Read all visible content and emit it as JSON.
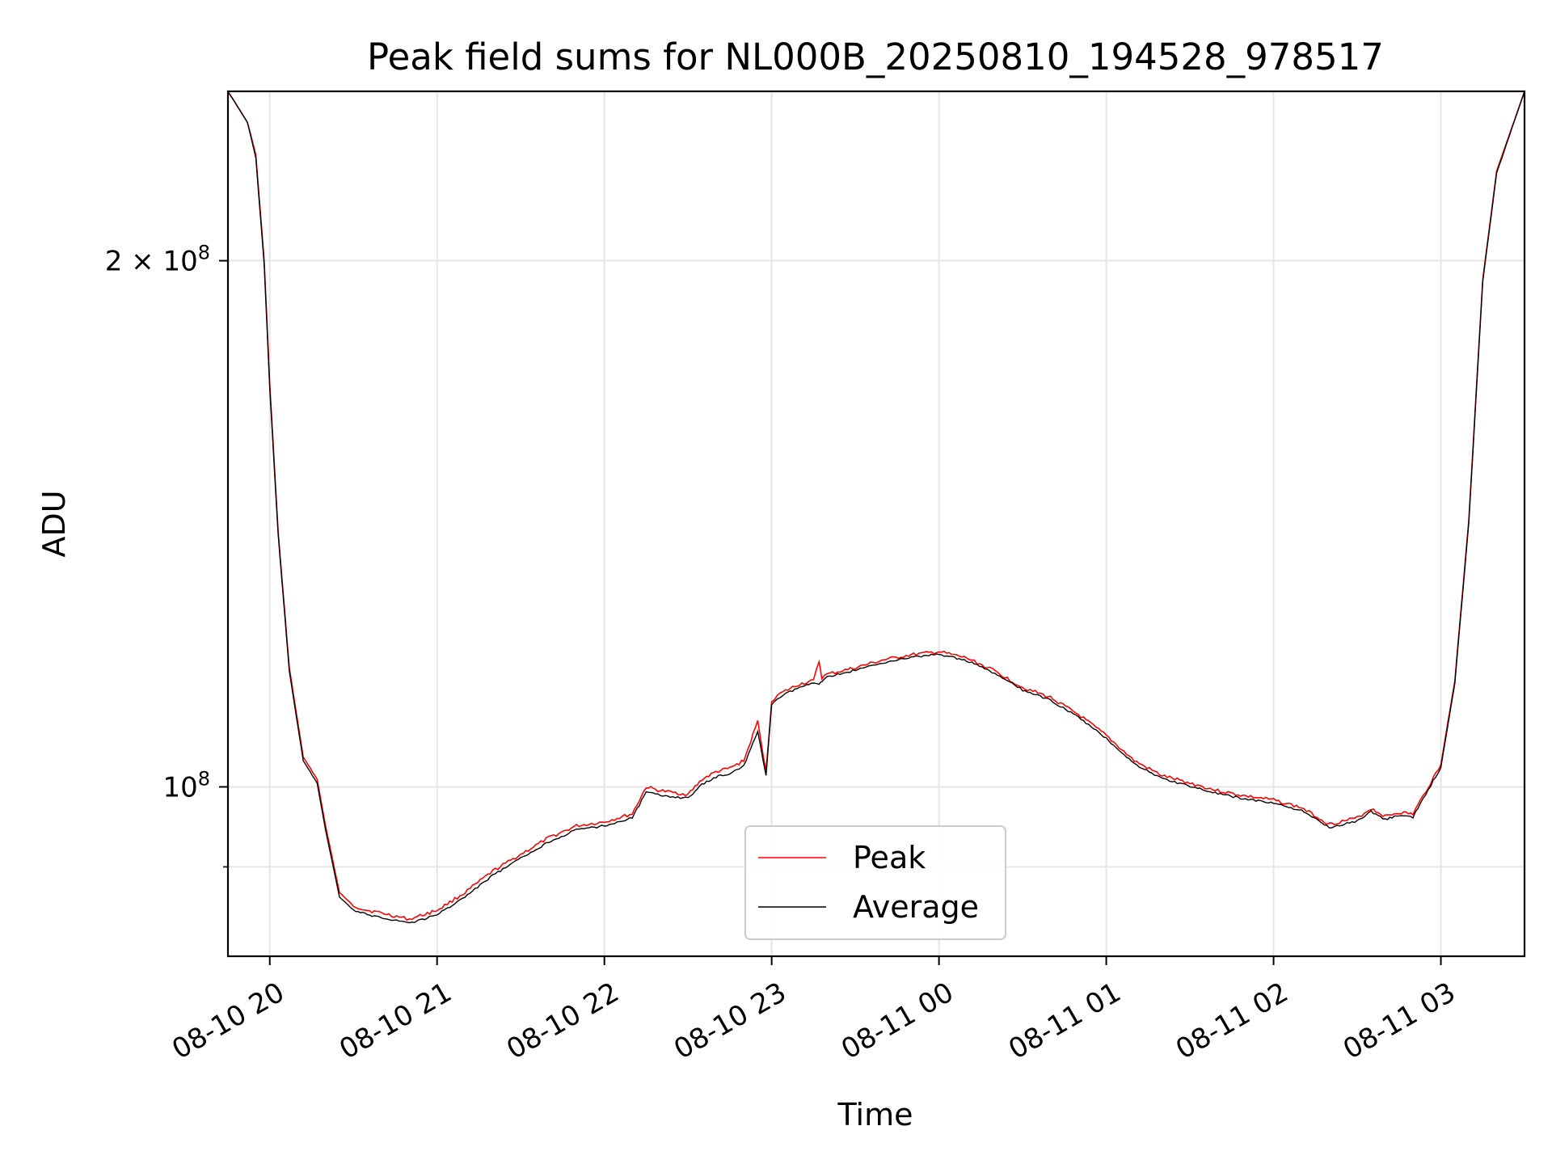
{
  "chart_data": {
    "type": "line",
    "title": "Peak field sums for NL000B_20250810_194528_978517",
    "xlabel": "Time",
    "ylabel": "ADU",
    "y_scale": "log",
    "grid": true,
    "legend_position": "lower center",
    "xlim": [
      "2025-08-10 19:45",
      "2025-08-11 03:30"
    ],
    "ylim": [
      80000000,
      250000000
    ],
    "x_ticks": [
      "08-10 20",
      "08-10 21",
      "08-10 22",
      "08-10 23",
      "08-11 00",
      "08-11 01",
      "08-11 02",
      "08-11 03"
    ],
    "y_ticks": [
      {
        "value": 100000000,
        "base": "10",
        "exp": "8",
        "coef": ""
      },
      {
        "value": 200000000,
        "base": "10",
        "exp": "8",
        "coef": "2 × "
      }
    ],
    "y_minor_ticks": [
      90000000
    ],
    "series": [
      {
        "name": "Peak",
        "color": "#ff0000",
        "x": [
          "2025-08-10 19:45",
          "2025-08-10 19:52",
          "2025-08-10 19:55",
          "2025-08-10 19:58",
          "2025-08-10 20:00",
          "2025-08-10 20:03",
          "2025-08-10 20:07",
          "2025-08-10 20:12",
          "2025-08-10 20:17",
          "2025-08-10 20:20",
          "2025-08-10 20:25",
          "2025-08-10 20:30",
          "2025-08-10 20:35",
          "2025-08-10 20:40",
          "2025-08-10 20:50",
          "2025-08-10 20:53",
          "2025-08-10 21:00",
          "2025-08-10 21:10",
          "2025-08-10 21:20",
          "2025-08-10 21:30",
          "2025-08-10 21:40",
          "2025-08-10 21:50",
          "2025-08-10 22:00",
          "2025-08-10 22:10",
          "2025-08-10 22:15",
          "2025-08-10 22:20",
          "2025-08-10 22:30",
          "2025-08-10 22:35",
          "2025-08-10 22:40",
          "2025-08-10 22:45",
          "2025-08-10 22:50",
          "2025-08-10 22:55",
          "2025-08-10 22:58",
          "2025-08-10 23:00",
          "2025-08-10 23:02",
          "2025-08-10 23:05",
          "2025-08-10 23:10",
          "2025-08-10 23:15",
          "2025-08-10 23:17",
          "2025-08-10 23:18",
          "2025-08-10 23:20",
          "2025-08-10 23:30",
          "2025-08-10 23:40",
          "2025-08-10 23:50",
          "2025-08-11 00:00",
          "2025-08-11 00:10",
          "2025-08-11 00:20",
          "2025-08-11 00:30",
          "2025-08-11 00:40",
          "2025-08-11 00:50",
          "2025-08-11 01:00",
          "2025-08-11 01:10",
          "2025-08-11 01:20",
          "2025-08-11 01:30",
          "2025-08-11 01:40",
          "2025-08-11 01:50",
          "2025-08-11 02:00",
          "2025-08-11 02:10",
          "2025-08-11 02:20",
          "2025-08-11 02:30",
          "2025-08-11 02:35",
          "2025-08-11 02:40",
          "2025-08-11 02:45",
          "2025-08-11 02:50",
          "2025-08-11 03:00",
          "2025-08-11 03:05",
          "2025-08-11 03:10",
          "2025-08-11 03:15",
          "2025-08-11 03:20",
          "2025-08-11 03:30"
        ],
        "y": [
          250000000,
          240000000,
          230000000,
          200000000,
          170000000,
          140000000,
          117000000,
          104000000,
          101000000,
          95000000,
          87000000,
          85500000,
          85000000,
          84700000,
          84000000,
          84300000,
          85000000,
          87000000,
          89500000,
          91500000,
          93500000,
          95000000,
          95500000,
          96500000,
          100000000,
          99500000,
          99000000,
          101000000,
          102000000,
          102500000,
          103500000,
          109000000,
          102000000,
          112000000,
          112800000,
          113500000,
          114500000,
          115000000,
          118000000,
          115500000,
          116000000,
          117000000,
          118200000,
          119000000,
          119500000,
          118500000,
          116500000,
          114000000,
          112500000,
          110000000,
          107000000,
          103500000,
          101500000,
          100500000,
          99500000,
          98800000,
          98300000,
          97300000,
          95200000,
          96000000,
          97200000,
          96200000,
          96700000,
          96500000,
          103000000,
          115000000,
          142000000,
          195000000,
          225000000,
          250000000
        ]
      },
      {
        "name": "Average",
        "color": "#000000",
        "x": [
          "2025-08-10 19:45",
          "2025-08-10 19:52",
          "2025-08-10 19:55",
          "2025-08-10 19:58",
          "2025-08-10 20:00",
          "2025-08-10 20:03",
          "2025-08-10 20:07",
          "2025-08-10 20:12",
          "2025-08-10 20:17",
          "2025-08-10 20:20",
          "2025-08-10 20:25",
          "2025-08-10 20:30",
          "2025-08-10 20:35",
          "2025-08-10 20:40",
          "2025-08-10 20:50",
          "2025-08-10 20:53",
          "2025-08-10 21:00",
          "2025-08-10 21:10",
          "2025-08-10 21:20",
          "2025-08-10 21:30",
          "2025-08-10 21:40",
          "2025-08-10 21:50",
          "2025-08-10 22:00",
          "2025-08-10 22:10",
          "2025-08-10 22:15",
          "2025-08-10 22:20",
          "2025-08-10 22:30",
          "2025-08-10 22:35",
          "2025-08-10 22:40",
          "2025-08-10 22:45",
          "2025-08-10 22:50",
          "2025-08-10 22:55",
          "2025-08-10 22:58",
          "2025-08-10 23:00",
          "2025-08-10 23:02",
          "2025-08-10 23:05",
          "2025-08-10 23:10",
          "2025-08-10 23:15",
          "2025-08-10 23:17",
          "2025-08-10 23:18",
          "2025-08-10 23:20",
          "2025-08-10 23:30",
          "2025-08-10 23:40",
          "2025-08-10 23:50",
          "2025-08-11 00:00",
          "2025-08-11 00:10",
          "2025-08-11 00:20",
          "2025-08-11 00:30",
          "2025-08-11 00:40",
          "2025-08-11 00:50",
          "2025-08-11 01:00",
          "2025-08-11 01:10",
          "2025-08-11 01:20",
          "2025-08-11 01:30",
          "2025-08-11 01:40",
          "2025-08-11 01:50",
          "2025-08-11 02:00",
          "2025-08-11 02:10",
          "2025-08-11 02:20",
          "2025-08-11 02:30",
          "2025-08-11 02:35",
          "2025-08-11 02:40",
          "2025-08-11 02:45",
          "2025-08-11 02:50",
          "2025-08-11 03:00",
          "2025-08-11 03:05",
          "2025-08-11 03:10",
          "2025-08-11 03:15",
          "2025-08-11 03:20",
          "2025-08-11 03:30"
        ],
        "y": [
          250000000,
          240000000,
          229000000,
          199000000,
          169000000,
          139500000,
          116500000,
          103500000,
          100500000,
          94500000,
          86500000,
          85000000,
          84500000,
          84200000,
          83600000,
          83800000,
          84500000,
          86500000,
          89000000,
          91000000,
          93000000,
          94500000,
          95000000,
          96000000,
          99300000,
          98900000,
          98500000,
          100300000,
          101300000,
          101800000,
          102800000,
          107500000,
          101500000,
          111500000,
          112300000,
          113000000,
          114000000,
          114600000,
          114600000,
          115000000,
          115600000,
          116600000,
          117800000,
          118600000,
          119100000,
          118100000,
          116100000,
          113600000,
          112100000,
          109600000,
          106600000,
          103100000,
          101100000,
          100100000,
          99100000,
          98400000,
          97900000,
          96900000,
          94800000,
          95600000,
          96800000,
          95800000,
          96300000,
          96100000,
          102600000,
          114600000,
          141500000,
          194500000,
          224500000,
          250000000
        ]
      }
    ]
  }
}
